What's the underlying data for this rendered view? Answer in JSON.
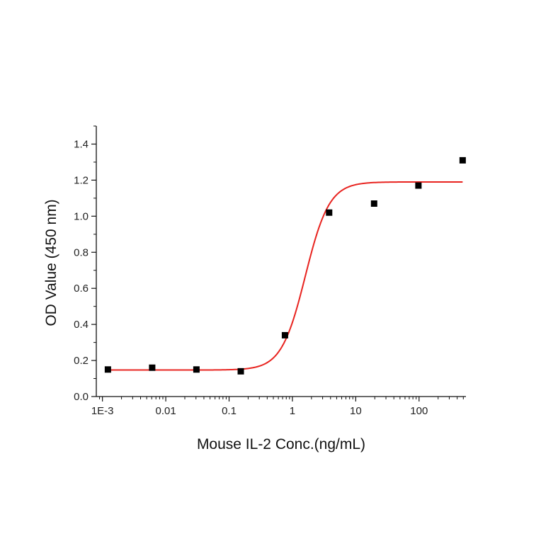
{
  "chart_data": {
    "type": "scatter",
    "title": "",
    "xlabel": "Mouse IL-2 Conc.(ng/mL)",
    "ylabel": "OD Value (450 nm)",
    "x_scale": "log",
    "xlim": [
      0.0008,
      550
    ],
    "ylim": [
      0.0,
      1.5
    ],
    "x_ticks": [
      0.001,
      0.01,
      0.1,
      1,
      10,
      100
    ],
    "x_tick_labels": [
      "1E-3",
      "0.01",
      "0.1",
      "1",
      "10",
      "100"
    ],
    "y_ticks": [
      0.0,
      0.2,
      0.4,
      0.6,
      0.8,
      1.0,
      1.2,
      1.4
    ],
    "y_tick_labels": [
      "0.0",
      "0.2",
      "0.4",
      "0.6",
      "0.8",
      "1.0",
      "1.2",
      "1.4"
    ],
    "grid": false,
    "series": [
      {
        "x": [
          0.00122,
          0.0061,
          0.0305,
          0.153,
          0.763,
          3.8,
          19.5,
          97.7,
          488
        ],
        "y": [
          0.15,
          0.16,
          0.15,
          0.14,
          0.34,
          1.02,
          1.07,
          1.17,
          1.31
        ],
        "color": "#000000",
        "marker": "square"
      }
    ],
    "fit_curve": {
      "model": "4PL",
      "bottom": 0.147,
      "top": 1.19,
      "ec50": 1.6,
      "hill": 2.3,
      "color": "#e8231f"
    }
  }
}
